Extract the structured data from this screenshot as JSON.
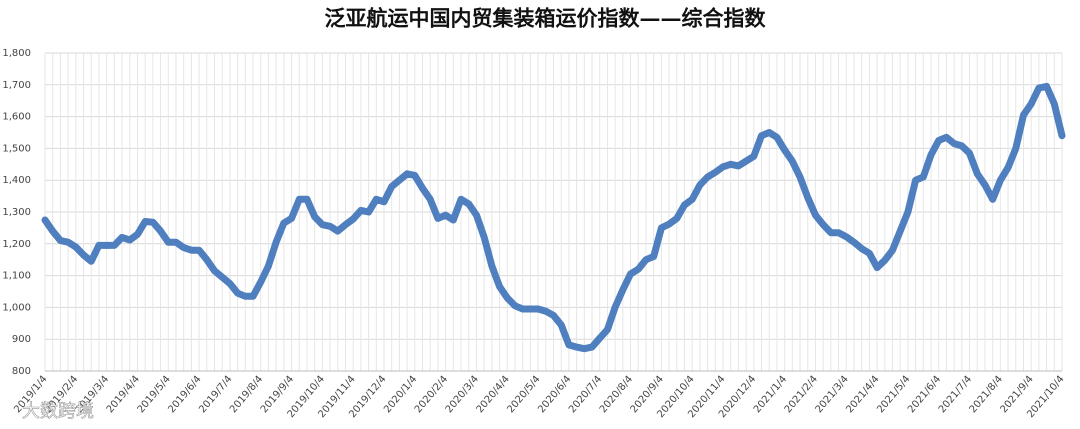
{
  "chart_data": {
    "type": "line",
    "title": "泛亚航运中国内贸集装箱运价指数——综合指数",
    "watermark": "大数跨境",
    "categories": [
      "2019/1/4",
      null,
      null,
      null,
      "2019/2/4",
      null,
      null,
      null,
      "2019/3/4",
      null,
      null,
      null,
      "2019/4/4",
      null,
      null,
      null,
      "2019/5/4",
      null,
      null,
      null,
      "2019/6/4",
      null,
      null,
      null,
      "2019/7/4",
      null,
      null,
      null,
      "2019/8/4",
      null,
      null,
      null,
      "2019/9/4",
      null,
      null,
      null,
      "2019/10/4",
      null,
      null,
      null,
      "2019/11/4",
      null,
      null,
      null,
      "2019/12/4",
      null,
      null,
      null,
      "2020/1/4",
      null,
      null,
      null,
      "2020/2/4",
      null,
      null,
      null,
      "2020/3/4",
      null,
      null,
      null,
      "2020/4/4",
      null,
      null,
      null,
      "2020/5/4",
      null,
      null,
      null,
      "2020/6/4",
      null,
      null,
      null,
      "2020/7/4",
      null,
      null,
      null,
      "2020/8/4",
      null,
      null,
      null,
      "2020/9/4",
      null,
      null,
      null,
      "2020/10/4",
      null,
      null,
      null,
      "2020/11/4",
      null,
      null,
      null,
      "2020/12/4",
      null,
      null,
      null,
      "2021/1/4",
      null,
      null,
      null,
      "2021/2/4",
      null,
      null,
      null,
      "2021/3/4",
      null,
      null,
      null,
      "2021/4/4",
      null,
      null,
      null,
      "2021/5/4",
      null,
      null,
      null,
      "2021/6/4",
      null,
      null,
      null,
      "2021/7/4",
      null,
      null,
      null,
      "2021/8/4",
      null,
      null,
      null,
      "2021/9/4",
      null,
      null,
      null,
      "2021/10/4"
    ],
    "values": [
      1275,
      1240,
      1210,
      1205,
      1190,
      1165,
      1145,
      1195,
      1195,
      1195,
      1220,
      1212,
      1230,
      1270,
      1268,
      1240,
      1205,
      1205,
      1188,
      1180,
      1180,
      1150,
      1115,
      1095,
      1075,
      1045,
      1035,
      1035,
      1080,
      1130,
      1205,
      1265,
      1280,
      1340,
      1340,
      1285,
      1260,
      1255,
      1240,
      1260,
      1278,
      1305,
      1300,
      1340,
      1332,
      1380,
      1400,
      1420,
      1415,
      1375,
      1340,
      1280,
      1290,
      1275,
      1340,
      1325,
      1290,
      1220,
      1130,
      1065,
      1030,
      1005,
      995,
      995,
      995,
      988,
      975,
      945,
      882,
      875,
      870,
      875,
      903,
      930,
      1000,
      1055,
      1105,
      1120,
      1150,
      1160,
      1250,
      1262,
      1280,
      1322,
      1340,
      1385,
      1410,
      1425,
      1442,
      1450,
      1445,
      1460,
      1475,
      1540,
      1550,
      1535,
      1495,
      1460,
      1410,
      1345,
      1290,
      1260,
      1235,
      1235,
      1222,
      1205,
      1185,
      1170,
      1125,
      1148,
      1180,
      1240,
      1300,
      1400,
      1410,
      1480,
      1525,
      1535,
      1515,
      1508,
      1485,
      1420,
      1385,
      1340,
      1400,
      1440,
      1500,
      1605,
      1640,
      1690,
      1695,
      1640,
      1540
    ],
    "color": "#4f7fbf",
    "ylim": [
      800,
      1800
    ],
    "yticks": [
      800,
      900,
      {
        "value": 1000,
        "label": "1,000"
      },
      {
        "value": 1100,
        "label": "1,100"
      },
      {
        "value": 1200,
        "label": "1,200"
      },
      {
        "value": 1300,
        "label": "1,300"
      },
      {
        "value": 1400,
        "label": "1,400"
      },
      {
        "value": 1500,
        "label": "1,500"
      },
      {
        "value": 1600,
        "label": "1,600"
      },
      {
        "value": 1700,
        "label": "1,700"
      },
      {
        "value": 1800,
        "label": "1,800"
      }
    ],
    "grid": true
  }
}
